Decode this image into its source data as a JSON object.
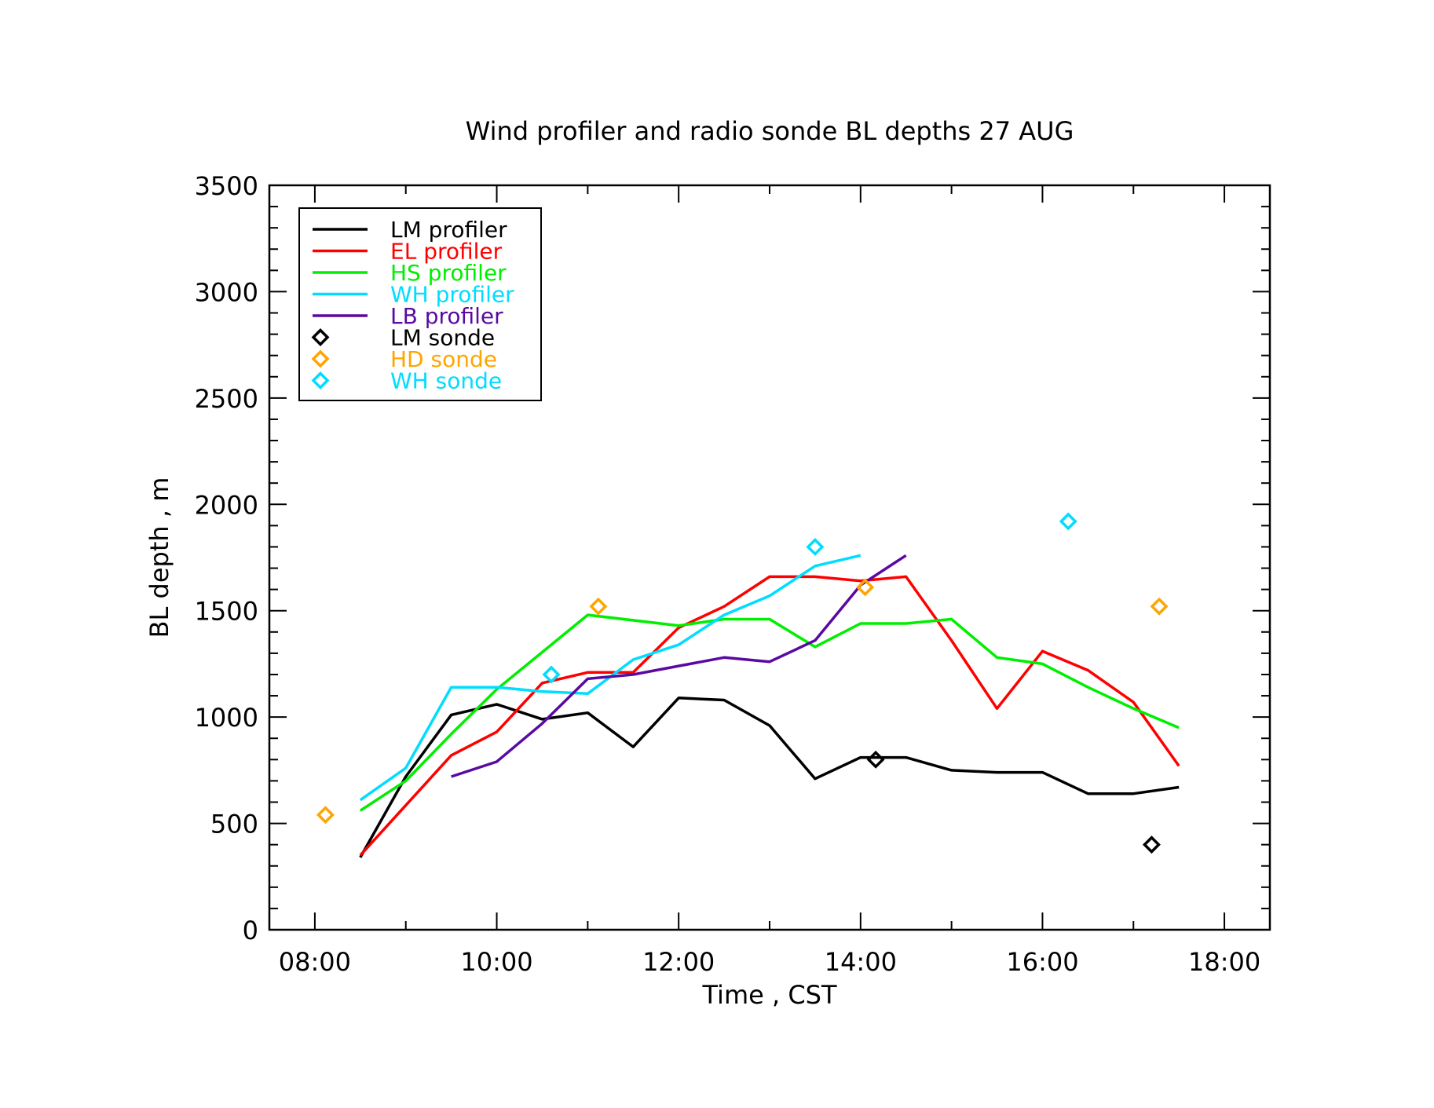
{
  "chart_data": {
    "type": "line",
    "title": "Wind profiler and radio sonde BL depths  27 AUG",
    "xlabel": "Time , CST",
    "ylabel": "BL depth , m",
    "xlim": [
      "07:30",
      "18:30"
    ],
    "ylim": [
      0,
      3500
    ],
    "x_ticks": [
      "08:00",
      "10:00",
      "12:00",
      "14:00",
      "16:00",
      "18:00"
    ],
    "y_ticks": [
      "0",
      "500",
      "1000",
      "1500",
      "2000",
      "2500",
      "3000",
      "3500"
    ],
    "legend_position": "top-left",
    "grid": false,
    "series": [
      {
        "name": "LM profiler",
        "kind": "line",
        "color": "#000000",
        "points": [
          [
            "08:30",
            340
          ],
          [
            "09:00",
            720
          ],
          [
            "09:30",
            1010
          ],
          [
            "10:00",
            1060
          ],
          [
            "10:30",
            990
          ],
          [
            "11:00",
            1020
          ],
          [
            "11:30",
            860
          ],
          [
            "12:00",
            1090
          ],
          [
            "12:30",
            1080
          ],
          [
            "13:00",
            960
          ],
          [
            "13:30",
            710
          ],
          [
            "14:00",
            810
          ],
          [
            "14:30",
            810
          ],
          [
            "15:00",
            750
          ],
          [
            "15:30",
            740
          ],
          [
            "16:00",
            740
          ],
          [
            "16:30",
            640
          ],
          [
            "17:00",
            640
          ],
          [
            "17:30",
            670
          ]
        ]
      },
      {
        "name": "EL profiler",
        "kind": "line",
        "color": "#ff0000",
        "points": [
          [
            "08:30",
            350
          ],
          [
            "09:30",
            820
          ],
          [
            "10:00",
            930
          ],
          [
            "10:30",
            1160
          ],
          [
            "11:00",
            1210
          ],
          [
            "11:30",
            1210
          ],
          [
            "12:00",
            1420
          ],
          [
            "12:30",
            1520
          ],
          [
            "13:00",
            1660
          ],
          [
            "13:30",
            1660
          ],
          [
            "14:00",
            1640
          ],
          [
            "14:30",
            1660
          ],
          [
            "15:00",
            1360
          ],
          [
            "15:30",
            1040
          ],
          [
            "16:00",
            1310
          ],
          [
            "16:30",
            1220
          ],
          [
            "17:00",
            1070
          ],
          [
            "17:30",
            770
          ]
        ]
      },
      {
        "name": "HS profiler",
        "kind": "line",
        "color": "#00ee00",
        "points": [
          [
            "08:30",
            560
          ],
          [
            "09:00",
            700
          ],
          [
            "09:30",
            920
          ],
          [
            "10:00",
            1130
          ],
          [
            "11:00",
            1480
          ],
          [
            "12:00",
            1430
          ],
          [
            "12:30",
            1460
          ],
          [
            "13:00",
            1460
          ],
          [
            "13:30",
            1330
          ],
          [
            "14:00",
            1440
          ],
          [
            "14:30",
            1440
          ],
          [
            "15:00",
            1460
          ],
          [
            "15:30",
            1280
          ],
          [
            "16:00",
            1250
          ],
          [
            "16:30",
            1140
          ],
          [
            "17:00",
            1040
          ],
          [
            "17:30",
            950
          ]
        ]
      },
      {
        "name": "WH profiler",
        "kind": "line",
        "color": "#00ddff",
        "points": [
          [
            "08:30",
            610
          ],
          [
            "09:00",
            760
          ],
          [
            "09:30",
            1140
          ],
          [
            "10:00",
            1140
          ],
          [
            "10:30",
            1120
          ],
          [
            "11:00",
            1110
          ],
          [
            "11:30",
            1270
          ],
          [
            "12:00",
            1340
          ],
          [
            "12:30",
            1480
          ],
          [
            "13:00",
            1570
          ],
          [
            "13:30",
            1710
          ],
          [
            "14:00",
            1760
          ]
        ]
      },
      {
        "name": "LB profiler",
        "kind": "line",
        "color": "#5a0aa0",
        "points": [
          [
            "09:30",
            720
          ],
          [
            "10:00",
            790
          ],
          [
            "10:30",
            970
          ],
          [
            "11:00",
            1180
          ],
          [
            "11:30",
            1200
          ],
          [
            "12:00",
            1240
          ],
          [
            "12:30",
            1280
          ],
          [
            "13:00",
            1260
          ],
          [
            "13:30",
            1360
          ],
          [
            "14:00",
            1620
          ],
          [
            "14:30",
            1760
          ]
        ]
      },
      {
        "name": "LM sonde",
        "kind": "marker",
        "color": "#000000",
        "points": [
          [
            "14:10",
            800
          ],
          [
            "17:12",
            400
          ]
        ]
      },
      {
        "name": "HD sonde",
        "kind": "marker",
        "color": "#ffa500",
        "points": [
          [
            "08:07",
            540
          ],
          [
            "11:07",
            1520
          ],
          [
            "14:03",
            1610
          ],
          [
            "17:17",
            1520
          ]
        ]
      },
      {
        "name": "WH sonde",
        "kind": "marker",
        "color": "#00ddff",
        "points": [
          [
            "10:36",
            1200
          ],
          [
            "13:30",
            1800
          ],
          [
            "16:17",
            1920
          ]
        ]
      }
    ]
  }
}
